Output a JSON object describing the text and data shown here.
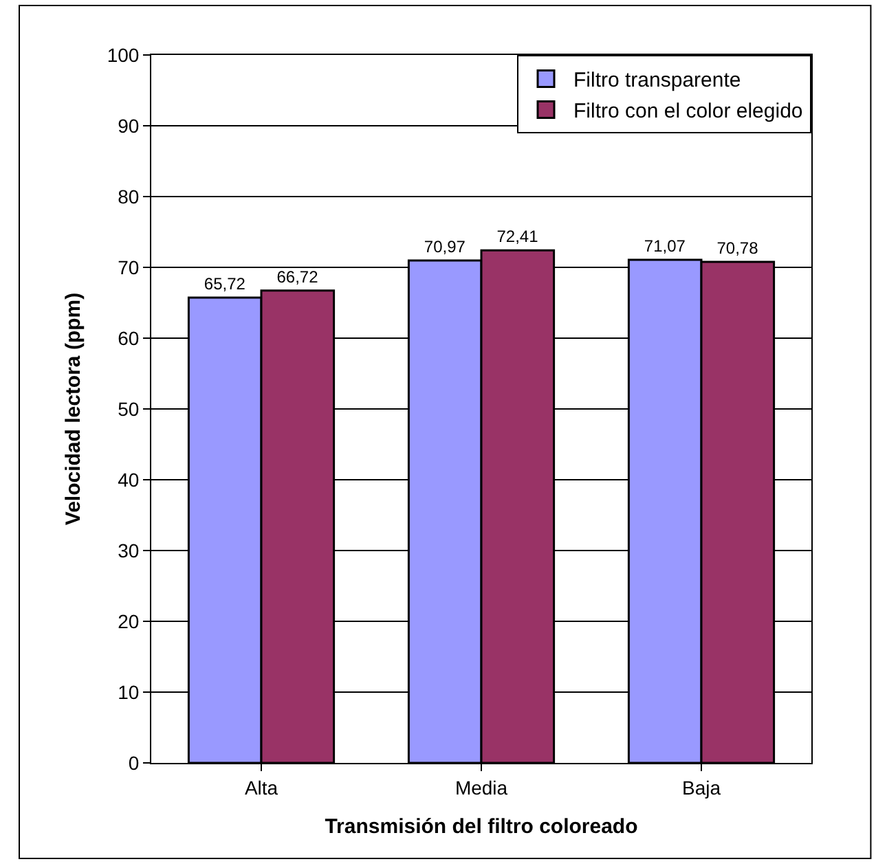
{
  "chart_data": {
    "type": "bar",
    "xlabel": "Transmisión del filtro coloreado",
    "ylabel": "Velocidad lectora (ppm)",
    "categories": [
      "Alta",
      "Media",
      "Baja"
    ],
    "series": [
      {
        "name": "Filtro transparente",
        "color": "#9999ff",
        "values": [
          65.72,
          70.97,
          71.07
        ],
        "value_labels": [
          "65,72",
          "70,97",
          "71,07"
        ]
      },
      {
        "name": "Filtro con el color elegido",
        "color": "#993366",
        "values": [
          66.72,
          72.41,
          70.78
        ],
        "value_labels": [
          "66,72",
          "72,41",
          "70,78"
        ]
      }
    ],
    "ylim": [
      0,
      100
    ],
    "yticks": [
      0,
      10,
      20,
      30,
      40,
      50,
      60,
      70,
      80,
      90,
      100
    ],
    "grid": "y",
    "legend": "top right"
  }
}
